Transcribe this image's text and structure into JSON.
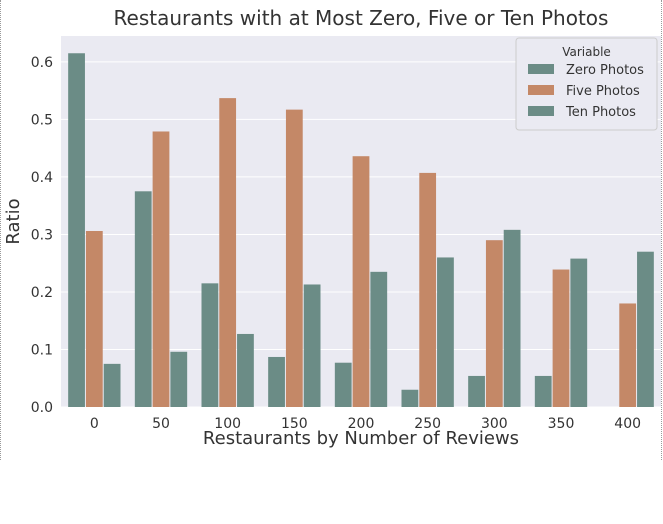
{
  "chart_data": {
    "type": "bar",
    "title": "Restaurants with at Most Zero, Five or Ten Photos",
    "xlabel": "Restaurants by Number of Reviews",
    "ylabel": "Ratio",
    "ylim": [
      0,
      0.645
    ],
    "yticks": [
      "0.0",
      "0.1",
      "0.2",
      "0.3",
      "0.4",
      "0.5",
      "0.6"
    ],
    "categories": [
      "0",
      "50",
      "100",
      "150",
      "200",
      "250",
      "300",
      "350",
      "400"
    ],
    "grid": true,
    "legend": {
      "title": "Variable",
      "position": "top-right"
    },
    "series": [
      {
        "name": "Zero Photos",
        "color": "#6b8c86",
        "values": [
          0.615,
          0.375,
          0.215,
          0.087,
          0.077,
          0.03,
          0.054,
          0.054,
          0.0
        ]
      },
      {
        "name": "Five Photos",
        "color": "#c48867",
        "values": [
          0.306,
          0.479,
          0.537,
          0.517,
          0.436,
          0.407,
          0.29,
          0.239,
          0.18
        ]
      },
      {
        "name": "Ten Photos",
        "color": "#6b8c86",
        "values": [
          0.075,
          0.096,
          0.127,
          0.213,
          0.235,
          0.26,
          0.308,
          0.258,
          0.27
        ]
      }
    ]
  }
}
